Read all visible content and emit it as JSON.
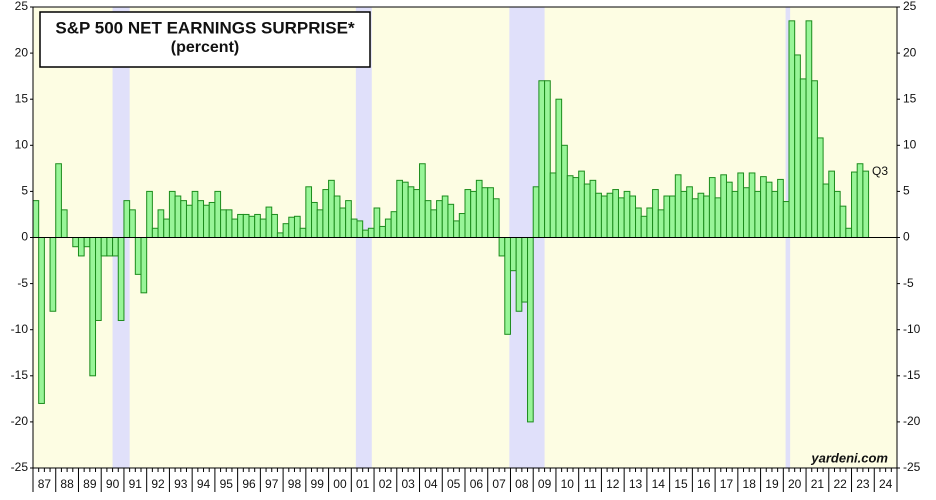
{
  "chart_data": {
    "type": "bar",
    "title": "S&P 500 NET EARNINGS SURPRISE*",
    "subtitle": "(percent)",
    "annotations": [
      "Q3",
      "yardeni.com"
    ],
    "categories": [
      "87",
      null,
      null,
      null,
      "88",
      null,
      null,
      null,
      "89",
      null,
      null,
      null,
      "90",
      null,
      null,
      null,
      "91",
      null,
      null,
      null,
      "92",
      null,
      null,
      null,
      "93",
      null,
      null,
      null,
      "94",
      null,
      null,
      null,
      "95",
      null,
      null,
      null,
      "96",
      null,
      null,
      null,
      "97",
      null,
      null,
      null,
      "98",
      null,
      null,
      null,
      "99",
      null,
      null,
      null,
      "00",
      null,
      null,
      null,
      "01",
      null,
      null,
      null,
      "02",
      null,
      null,
      null,
      "03",
      null,
      null,
      null,
      "04",
      null,
      null,
      null,
      "05",
      null,
      null,
      null,
      "06",
      null,
      null,
      null,
      "07",
      null,
      null,
      null,
      "08",
      null,
      null,
      null,
      "09",
      null,
      null,
      null,
      "10",
      null,
      null,
      null,
      "11",
      null,
      null,
      null,
      "12",
      null,
      null,
      null,
      "13",
      null,
      null,
      null,
      "14",
      null,
      null,
      null,
      "15",
      null,
      null,
      null,
      "16",
      null,
      null,
      null,
      "17",
      null,
      null,
      null,
      "18",
      null,
      null,
      null,
      "19",
      null,
      null,
      null,
      "20",
      null,
      null,
      null,
      "21",
      null,
      null,
      null,
      "22",
      null,
      null,
      null,
      "23",
      null,
      null,
      null,
      "24",
      null,
      null,
      null
    ],
    "values": [
      4,
      -18,
      0,
      -8,
      8,
      3,
      0,
      -1,
      -2,
      -1,
      -15,
      -9,
      -2,
      -2,
      -2,
      -9,
      4,
      3,
      -4,
      -6,
      5,
      1,
      3,
      2,
      5,
      4.5,
      4,
      3.5,
      5,
      4,
      3.5,
      3.8,
      5,
      3,
      3,
      2,
      2.5,
      2.5,
      2.3,
      2.5,
      2,
      3.3,
      2.5,
      0.5,
      1.5,
      2.2,
      2.3,
      1,
      5.5,
      3.8,
      3,
      5.2,
      6.2,
      4.5,
      3.2,
      4,
      2,
      1.8,
      0.8,
      1,
      3.2,
      1.2,
      2,
      2.8,
      6.2,
      6,
      5.5,
      5.2,
      8,
      4,
      3,
      4,
      4.5,
      3.6,
      1.8,
      2.6,
      5.2,
      5,
      6.2,
      5.4,
      5.4,
      4.2,
      -2,
      -10.5,
      -3.6,
      -8,
      -7,
      -20,
      5.5,
      17,
      17,
      7,
      15,
      10,
      6.7,
      6.5,
      7.2,
      5.8,
      6.2,
      4.8,
      4.5,
      4.8,
      5.2,
      4.3,
      5,
      4.5,
      3.2,
      2.3,
      3.2,
      5.2,
      3,
      4.5,
      4.5,
      6.8,
      5,
      5.5,
      4.2,
      4.8,
      4.5,
      6.5,
      4.3,
      6.8,
      6,
      5,
      7,
      5.4,
      7,
      5,
      6.6,
      6,
      5,
      6.3,
      3.9,
      23.5,
      19.8,
      17.2,
      23.5,
      17,
      10.8,
      5.8,
      7.2,
      5,
      3.4,
      1,
      7.1,
      8,
      7.2,
      null,
      null,
      null,
      null,
      null
    ],
    "color": "#98f598",
    "edge_color": "#1c8c1c",
    "background": "#fdfde3",
    "shade_color": "#e0e0fa",
    "shaded_ranges": [
      [
        1990.5,
        1991.25
      ],
      [
        2001.2,
        2001.9
      ],
      [
        2007.95,
        2009.5
      ],
      [
        2020.1,
        2020.3
      ]
    ],
    "xlim": [
      1987,
      2025
    ],
    "ylim": [
      -25,
      25
    ],
    "yticks": [
      -25,
      -20,
      -15,
      -10,
      -5,
      0,
      5,
      10,
      15,
      20,
      25
    ]
  }
}
